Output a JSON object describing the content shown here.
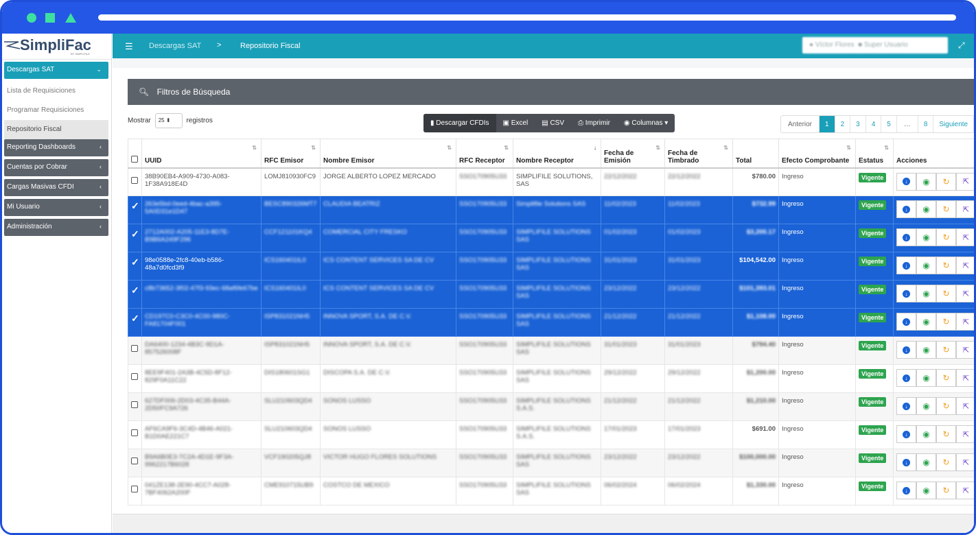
{
  "app": {
    "brand": "SimpliFac",
    "brand_by": "BY SIMPLIFILE"
  },
  "sidebar": {
    "section_open": "Descargas SAT",
    "subitems": [
      {
        "label": "Lista de Requisiciones"
      },
      {
        "label": "Programar Requisiciones"
      },
      {
        "label": "Repositorio Fiscal"
      }
    ],
    "items": [
      {
        "label": "Reporting Dashboards"
      },
      {
        "label": "Cuentas por Cobrar"
      },
      {
        "label": "Cargas Masivas CFDI"
      },
      {
        "label": "Mi Usuario"
      },
      {
        "label": "Administración"
      }
    ]
  },
  "topbar": {
    "crumb1": "Descargas SAT",
    "crumb_sep": ">",
    "crumb2": "Repositorio Fiscal",
    "user": "Víctor Flores",
    "role": "Super Usuario"
  },
  "filters": {
    "title": "Filtros de Búsqueda"
  },
  "length": {
    "prefix": "Mostrar",
    "value": "25",
    "suffix": "registros"
  },
  "buttons": {
    "download": "Descargar CFDIs",
    "excel": "Excel",
    "csv": "CSV",
    "print": "Imprimir",
    "columns": "Columnas"
  },
  "pager": {
    "prev": "Anterior",
    "pages": [
      "1",
      "2",
      "3",
      "4",
      "5",
      "…",
      "8"
    ],
    "next": "Siguiente",
    "current": "1"
  },
  "table": {
    "headers": [
      "UUID",
      "RFC Emisor",
      "Nombre Emisor",
      "RFC Receptor",
      "Nombre Receptor",
      "Fecha de Emisión",
      "Fecha de Timbrado",
      "Total",
      "Efecto Comprobante",
      "Estatus",
      "Acciones"
    ],
    "rows": [
      {
        "uuid": "38B90EB4-A909-4730-A083-1F38A918E4D",
        "rfc_e": "LOMJ810930FC9",
        "nom_e": "JORGE ALBERTO LOPEZ MERCADO",
        "rfc_r": "SSO170905U33",
        "nom_r": "SIMPLIFILE SOLUTIONS, SAS",
        "f_em": "22/12/2022",
        "f_tim": "22/12/2022",
        "total": "$780.00",
        "efecto": "Ingreso",
        "estatus": "Vigente",
        "state": "none"
      },
      {
        "uuid": "263e5bd-0eed-4bac-a395-5A0D31e1D47",
        "rfc_e": "BESC890326MT7",
        "nom_e": "CLAUDIA BEATRIZ",
        "rfc_r": "SSO170905U33",
        "nom_r": "Simplifile Solutions SAS",
        "f_em": "11/02/2023",
        "f_tim": "11/02/2023",
        "total": "$732.99",
        "efecto": "Ingreso",
        "estatus": "Vigente",
        "state": "sel"
      },
      {
        "uuid": "2712A002-A205-11E3-8D7E-B9B6A249F296",
        "rfc_e": "CCF121101KQ4",
        "nom_e": "COMERCIAL CITY FRESKO",
        "rfc_r": "SSO170905U33",
        "nom_r": "SIMPLIFILE SOLUTIONS SAS",
        "f_em": "01/02/2023",
        "f_tim": "01/02/2023",
        "total": "$3,200.17",
        "efecto": "Ingreso",
        "estatus": "Vigente",
        "state": "sel"
      },
      {
        "uuid": "98e0588e-2fc8-40eb-b586-48a7d0fcd3f9",
        "rfc_e": "ICS160401IL0",
        "nom_e": "ICS CONTENT SERVICES SA DE CV",
        "rfc_r": "SSO170905U33",
        "nom_r": "SIMPLIFILE SOLUTIONS SAS",
        "f_em": "31/01/2023",
        "f_tim": "31/01/2023",
        "total": "$104,542.00",
        "efecto": "Ingreso",
        "estatus": "Vigente",
        "state": "sel"
      },
      {
        "uuid": "c8b73652-3f02-47f3-93ec-68af6fe67be",
        "rfc_e": "ICS160401IL0",
        "nom_e": "ICS CONTENT SERVICES SA DE CV",
        "rfc_r": "SSO170905U33",
        "nom_r": "SIMPLIFILE SOLUTIONS SAS",
        "f_em": "23/12/2022",
        "f_tim": "23/12/2022",
        "total": "$101,393.01",
        "efecto": "Ingreso",
        "estatus": "Vigente",
        "state": "sel"
      },
      {
        "uuid": "CD197C0-C3C0-4C00-980C-FA81704F001",
        "rfc_e": "ISP831021NH5",
        "nom_e": "INNOVA SPORT, S.A. DE C.V.",
        "rfc_r": "SSO170905U33",
        "nom_r": "SIMPLIFILE SOLUTIONS SAS",
        "f_em": "21/12/2022",
        "f_tim": "21/12/2022",
        "total": "$1,108.00",
        "efecto": "Ingreso",
        "estatus": "Vigente",
        "state": "sel"
      },
      {
        "uuid": "DA6400-1234-4B3C-9D1A-857526008F",
        "rfc_e": "ISP831021NH5",
        "nom_e": "INNOVA SPORT, S.A. DE C.V.",
        "rfc_r": "SSO170905U33",
        "nom_r": "SIMPLIFILE SOLUTIONS SAS",
        "f_em": "31/01/2023",
        "f_tim": "31/01/2023",
        "total": "$794.40",
        "efecto": "Ingreso",
        "estatus": "Vigente",
        "state": "grey"
      },
      {
        "uuid": "8EE9F401-2A3B-4C5D-8F12-829F0A11C22",
        "rfc_e": "DIS180601SG1",
        "nom_e": "DISCOPA S.A. DE C.V.",
        "rfc_r": "SSO170905U33",
        "nom_r": "SIMPLIFILE SOLUTIONS SAS",
        "f_em": "29/12/2022",
        "f_tim": "29/12/2022",
        "total": "$1,200.00",
        "efecto": "Ingreso",
        "estatus": "Vigente",
        "state": "none"
      },
      {
        "uuid": "627DF006-2D03-4C35-B44A-2D50FC9A726",
        "rfc_e": "SLU210603QD4",
        "nom_e": "SONOS LUSSO",
        "rfc_r": "SSO170905U33",
        "nom_r": "SIMPLIFILE SOLUTIONS S.A.S.",
        "f_em": "21/12/2022",
        "f_tim": "21/12/2022",
        "total": "$1,210.00",
        "efecto": "Ingreso",
        "estatus": "Vigente",
        "state": "grey"
      },
      {
        "uuid": "AF6CA9F6-3C4D-4B46-A021-B1D0AE221C7",
        "rfc_e": "SLU210603QD4",
        "nom_e": "SONOS LUSSO",
        "rfc_r": "SSO170905U33",
        "nom_r": "SIMPLIFILE SOLUTIONS S.A.S.",
        "f_em": "17/01/2023",
        "f_tim": "17/01/2023",
        "total": "$691.00",
        "efecto": "Ingreso",
        "estatus": "Vigente",
        "state": "none"
      },
      {
        "uuid": "B9A6B0E3-7C2A-4D1E-9F3A-9962217B6028",
        "rfc_e": "VCF190205QJ8",
        "nom_e": "VICTOR HUGO FLORES SOLUTIONS",
        "rfc_r": "SSO170905U33",
        "nom_r": "SIMPLIFILE SOLUTIONS SAS",
        "f_em": "23/12/2022",
        "f_tim": "23/12/2022",
        "total": "$100,000.00",
        "efecto": "Ingreso",
        "estatus": "Vigente",
        "state": "grey"
      },
      {
        "uuid": "041ZE138-2E90-4CC7-A028-7BF4062A200F",
        "rfc_e": "CME910715UB9",
        "nom_e": "COSTCO DE MEXICO",
        "rfc_r": "SSO170905U33",
        "nom_r": "SIMPLIFILE SOLUTIONS SAS",
        "f_em": "06/02/2024",
        "f_tim": "06/02/2024",
        "total": "$1,330.00",
        "efecto": "Ingreso",
        "estatus": "Vigente",
        "state": "none"
      }
    ]
  },
  "colors": {
    "teal": "#1a9fb8",
    "selected": "#1a62d6",
    "status_green": "#2ea44f",
    "sidebar_grey": "#5d636b",
    "frame_blue": "#2457e6"
  },
  "icons": [
    "menu-icon",
    "chevron-down-icon",
    "chevron-left-icon",
    "user-icon",
    "briefcase-icon",
    "expand-icon",
    "search-icon",
    "file-icon",
    "excel-icon",
    "csv-icon",
    "print-icon",
    "eye-icon",
    "download-icon",
    "refresh-icon",
    "external-link-icon",
    "sort-icon"
  ]
}
